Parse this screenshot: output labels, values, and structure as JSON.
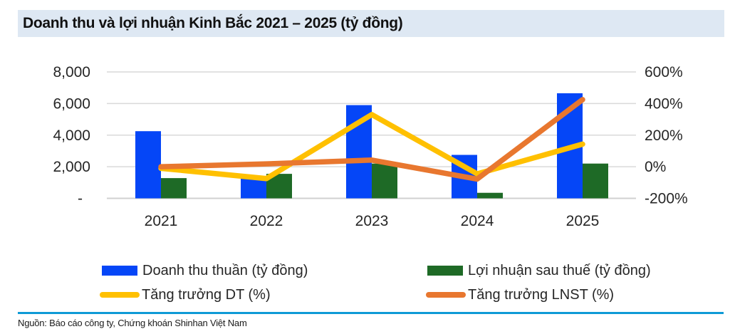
{
  "title": "Doanh thu và lợi nhuận Kinh Bắc 2021 – 2025 (tỷ đồng)",
  "source": "Nguồn: Báo cáo công ty, Chứng khoán Shinhan Việt Nam",
  "colors": {
    "title_bar_bg": "#dee8f3",
    "revenue_bar": "#0546f7",
    "profit_bar": "#1e6a26",
    "dt_growth_line": "#ffc000",
    "lnst_growth_line": "#e8772f",
    "gridline": "#d9d9d9",
    "bottom_axis": "#d0d0d0",
    "divider": "#0e9ad6"
  },
  "legend": [
    {
      "label": "Doanh thu thuần (tỷ đồng)",
      "color": "#0546f7",
      "type": "bar"
    },
    {
      "label": "Lợi nhuận sau thuế (tỷ đồng)",
      "color": "#1e6a26",
      "type": "bar"
    },
    {
      "label": "Tăng trưởng DT (%)",
      "color": "#ffc000",
      "type": "line"
    },
    {
      "label": "Tăng trưởng LNST (%)",
      "color": "#e8772f",
      "type": "line"
    }
  ],
  "chart_data": {
    "type": "bar",
    "subtype": "combo-bar-line-dual-axis",
    "title": "Doanh thu và lợi nhuận Kinh Bắc 2021 – 2025 (tỷ đồng)",
    "categories": [
      "2021",
      "2022",
      "2023",
      "2024",
      "2025"
    ],
    "bar_series": [
      {
        "name": "Doanh thu thuần (tỷ đồng)",
        "axis": "left",
        "color": "#0546f7",
        "values": [
          4250,
          1250,
          5900,
          2750,
          6650
        ]
      },
      {
        "name": "Lợi nhuận sau thuế (tỷ đồng)",
        "axis": "left",
        "color": "#1e6a26",
        "values": [
          1280,
          1550,
          2200,
          350,
          2200
        ]
      }
    ],
    "line_series": [
      {
        "name": "Tăng trưởng DT (%)",
        "axis": "right",
        "color": "#ffc000",
        "values": [
          -10,
          -75,
          330,
          -45,
          143
        ]
      },
      {
        "name": "Tăng trưởng LNST (%)",
        "axis": "right",
        "color": "#e8772f",
        "values": [
          0,
          18,
          42,
          -78,
          425
        ]
      }
    ],
    "left_axis": {
      "ticks": [
        "8,000",
        "6,000",
        "4,000",
        "2,000",
        "-"
      ],
      "tick_values": [
        8000,
        6000,
        4000,
        2000,
        0
      ],
      "range": [
        0,
        8000
      ]
    },
    "right_axis": {
      "ticks": [
        "600%",
        "400%",
        "200%",
        "0%",
        "-200%"
      ],
      "tick_values": [
        600,
        400,
        200,
        0,
        -200
      ],
      "range": [
        -200,
        600
      ]
    },
    "grid": "horizontal",
    "legend_position": "bottom"
  }
}
